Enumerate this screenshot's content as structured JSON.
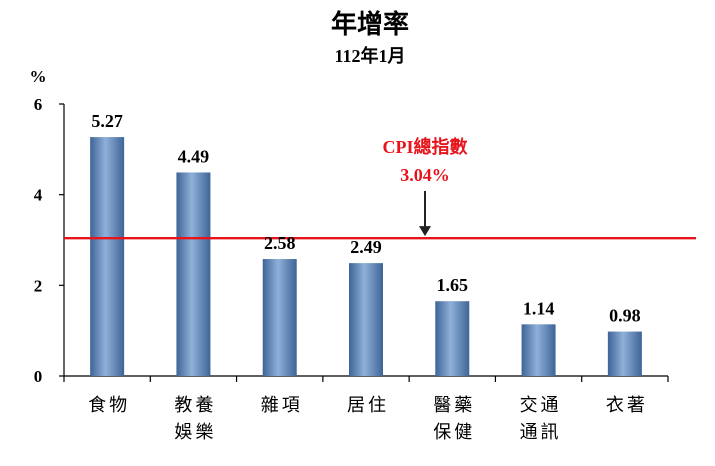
{
  "chart_data": {
    "type": "bar",
    "title": "年增率",
    "subtitle": "112年1月",
    "ylabel": "%",
    "ylim": [
      0,
      6
    ],
    "yticks": [
      0,
      2,
      4,
      6
    ],
    "categories": [
      [
        "食物"
      ],
      [
        "教養",
        "娛樂"
      ],
      [
        "雜項"
      ],
      [
        "居住"
      ],
      [
        "醫藥",
        "保健"
      ],
      [
        "交通",
        "通訊"
      ],
      [
        "衣著"
      ]
    ],
    "values": [
      5.27,
      4.49,
      2.58,
      2.49,
      1.65,
      1.14,
      0.98
    ],
    "value_labels": [
      "5.27",
      "4.49",
      "2.58",
      "2.49",
      "1.65",
      "1.14",
      "0.98"
    ],
    "reference_line": {
      "value": 3.04,
      "label": "CPI總指數",
      "value_label": "3.04%",
      "color": "#e8141c"
    },
    "bar_color": "#4f7bb0",
    "grid": false
  }
}
